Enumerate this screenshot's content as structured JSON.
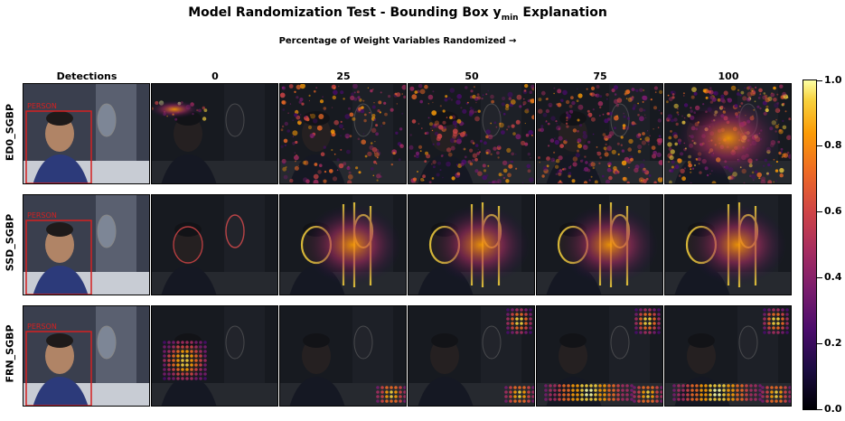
{
  "title": {
    "main": "Model Randomization Test - Bounding Box y",
    "sub": "min",
    "suffix": " Explanation"
  },
  "subtitle": "Percentage of Weight Variables Randomized →",
  "columns": [
    "Detections",
    "0",
    "25",
    "50",
    "75",
    "100"
  ],
  "rows": [
    "ED0_SGBP",
    "SSD_SGBP",
    "FRN_SGBP"
  ],
  "detection_label": "PERSON",
  "colorbar": {
    "colormap": "inferno",
    "ticks": [
      "0.0",
      "0.2",
      "0.4",
      "0.6",
      "0.8",
      "1.0"
    ]
  },
  "colors": {
    "box": "#d42020",
    "background": "#14161c"
  }
}
